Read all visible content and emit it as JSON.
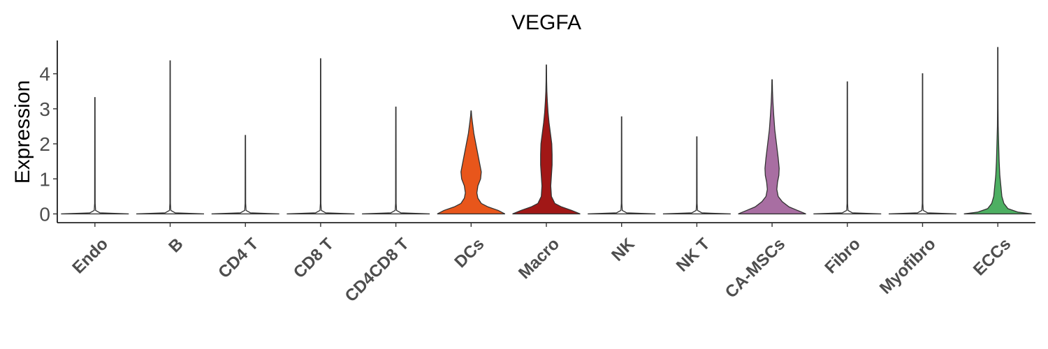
{
  "chart_data": {
    "type": "violin",
    "title": "VEGFA",
    "xlabel": "",
    "ylabel": "Expression",
    "ylim": [
      -0.25,
      4.95
    ],
    "yticks": [
      0,
      1,
      2,
      3,
      4
    ],
    "grid": false,
    "legend": "none",
    "categories": [
      "Endo",
      "B",
      "CD4 T",
      "CD8 T",
      "CD4CD8 T",
      "DCs",
      "Macro",
      "NK",
      "NK T",
      "CA-MSCs",
      "Fibro",
      "Myofibro",
      "ECCs"
    ],
    "series": [
      {
        "category": "Endo",
        "color": "#ffffff",
        "max": 3.32,
        "density": [
          [
            0,
            1
          ],
          [
            0.03,
            0.15
          ],
          [
            0.1,
            0.02
          ],
          [
            0.3,
            0.008
          ],
          [
            3.32,
            0.005
          ]
        ]
      },
      {
        "category": "B",
        "color": "#ffffff",
        "max": 4.37,
        "density": [
          [
            0,
            1
          ],
          [
            0.03,
            0.15
          ],
          [
            0.1,
            0.02
          ],
          [
            0.3,
            0.008
          ],
          [
            4.37,
            0.005
          ]
        ]
      },
      {
        "category": "CD4 T",
        "color": "#ffffff",
        "max": 2.24,
        "density": [
          [
            0,
            1
          ],
          [
            0.03,
            0.15
          ],
          [
            0.1,
            0.02
          ],
          [
            0.3,
            0.008
          ],
          [
            2.24,
            0.005
          ]
        ]
      },
      {
        "category": "CD8 T",
        "color": "#ffffff",
        "max": 4.43,
        "density": [
          [
            0,
            1
          ],
          [
            0.03,
            0.15
          ],
          [
            0.1,
            0.02
          ],
          [
            0.3,
            0.008
          ],
          [
            4.43,
            0.005
          ]
        ]
      },
      {
        "category": "CD4CD8 T",
        "color": "#ffffff",
        "max": 3.05,
        "density": [
          [
            0,
            1
          ],
          [
            0.03,
            0.15
          ],
          [
            0.1,
            0.02
          ],
          [
            0.3,
            0.008
          ],
          [
            3.05,
            0.005
          ]
        ]
      },
      {
        "category": "DCs",
        "color": "#e8561b",
        "max": 2.94,
        "density": [
          [
            0,
            1
          ],
          [
            0.1,
            0.8
          ],
          [
            0.2,
            0.5
          ],
          [
            0.3,
            0.3
          ],
          [
            0.45,
            0.2
          ],
          [
            0.6,
            0.17
          ],
          [
            0.8,
            0.2
          ],
          [
            1.0,
            0.28
          ],
          [
            1.2,
            0.3
          ],
          [
            1.4,
            0.26
          ],
          [
            1.7,
            0.2
          ],
          [
            2.0,
            0.14
          ],
          [
            2.3,
            0.08
          ],
          [
            2.6,
            0.04
          ],
          [
            2.8,
            0.015
          ],
          [
            2.94,
            0.005
          ]
        ]
      },
      {
        "category": "Macro",
        "color": "#a11716",
        "max": 4.25,
        "density": [
          [
            0,
            1
          ],
          [
            0.1,
            0.75
          ],
          [
            0.2,
            0.45
          ],
          [
            0.3,
            0.25
          ],
          [
            0.5,
            0.15
          ],
          [
            0.8,
            0.13
          ],
          [
            1.1,
            0.15
          ],
          [
            1.4,
            0.17
          ],
          [
            1.7,
            0.17
          ],
          [
            2.0,
            0.16
          ],
          [
            2.3,
            0.12
          ],
          [
            2.6,
            0.08
          ],
          [
            2.9,
            0.05
          ],
          [
            3.2,
            0.03
          ],
          [
            3.5,
            0.015
          ],
          [
            3.8,
            0.008
          ],
          [
            4.25,
            0.005
          ]
        ]
      },
      {
        "category": "NK",
        "color": "#ffffff",
        "max": 2.77,
        "density": [
          [
            0,
            1
          ],
          [
            0.03,
            0.15
          ],
          [
            0.1,
            0.02
          ],
          [
            0.3,
            0.008
          ],
          [
            2.77,
            0.005
          ]
        ]
      },
      {
        "category": "NK T",
        "color": "#ffffff",
        "max": 2.2,
        "density": [
          [
            0,
            1
          ],
          [
            0.03,
            0.15
          ],
          [
            0.1,
            0.02
          ],
          [
            0.3,
            0.008
          ],
          [
            2.2,
            0.005
          ]
        ]
      },
      {
        "category": "CA-MSCs",
        "color": "#a86ea2",
        "max": 3.83,
        "density": [
          [
            0,
            1
          ],
          [
            0.1,
            0.75
          ],
          [
            0.2,
            0.5
          ],
          [
            0.35,
            0.3
          ],
          [
            0.5,
            0.18
          ],
          [
            0.7,
            0.14
          ],
          [
            0.9,
            0.16
          ],
          [
            1.1,
            0.2
          ],
          [
            1.3,
            0.21
          ],
          [
            1.6,
            0.18
          ],
          [
            2.0,
            0.13
          ],
          [
            2.4,
            0.08
          ],
          [
            2.8,
            0.05
          ],
          [
            3.2,
            0.025
          ],
          [
            3.5,
            0.012
          ],
          [
            3.83,
            0.005
          ]
        ]
      },
      {
        "category": "Fibro",
        "color": "#ffffff",
        "max": 3.77,
        "density": [
          [
            0,
            1
          ],
          [
            0.03,
            0.15
          ],
          [
            0.1,
            0.02
          ],
          [
            0.3,
            0.008
          ],
          [
            3.77,
            0.005
          ]
        ]
      },
      {
        "category": "Myofibro",
        "color": "#ffffff",
        "max": 4.0,
        "density": [
          [
            0,
            1
          ],
          [
            0.03,
            0.15
          ],
          [
            0.1,
            0.02
          ],
          [
            0.3,
            0.008
          ],
          [
            4.0,
            0.005
          ]
        ]
      },
      {
        "category": "ECCs",
        "color": "#4daf62",
        "max": 4.75,
        "density": [
          [
            0,
            1
          ],
          [
            0.05,
            0.6
          ],
          [
            0.15,
            0.3
          ],
          [
            0.3,
            0.18
          ],
          [
            0.5,
            0.12
          ],
          [
            0.8,
            0.09
          ],
          [
            1.1,
            0.06
          ],
          [
            1.5,
            0.04
          ],
          [
            2.0,
            0.025
          ],
          [
            2.5,
            0.012
          ],
          [
            3.0,
            0.008
          ],
          [
            3.5,
            0.006
          ],
          [
            4.75,
            0.005
          ]
        ]
      }
    ]
  }
}
